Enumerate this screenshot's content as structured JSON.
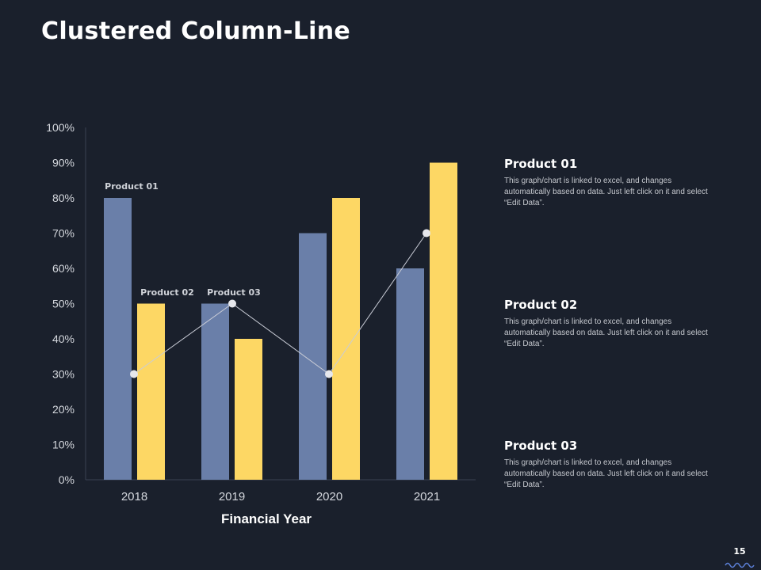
{
  "slide": {
    "title": "Clustered Column-Line",
    "page_number": "15"
  },
  "descriptions": [
    {
      "heading": "Product 01",
      "text": "This graph/chart is linked to excel, and changes automatically based on data. Just left click on it and select “Edit Data”."
    },
    {
      "heading": "Product 02",
      "text": "This graph/chart is linked to excel, and changes automatically based on data. Just left click on it and select “Edit Data”."
    },
    {
      "heading": "Product 03",
      "text": "This graph/chart is linked to excel, and changes automatically based on data. Just left click on it and select “Edit Data”."
    }
  ],
  "chart_data": {
    "type": "bar",
    "title": "",
    "xlabel": "Financial Year",
    "ylabel": "",
    "ylim": [
      0,
      100
    ],
    "yticks": [
      "0%",
      "10%",
      "20%",
      "30%",
      "40%",
      "50%",
      "60%",
      "70%",
      "80%",
      "90%",
      "100%"
    ],
    "categories": [
      "2018",
      "2019",
      "2020",
      "2021"
    ],
    "series": [
      {
        "name": "Product 01",
        "kind": "bar",
        "values": [
          80,
          50,
          70,
          60
        ],
        "color": "#6a7fa9"
      },
      {
        "name": "Product 02",
        "kind": "bar",
        "values": [
          50,
          40,
          80,
          90
        ],
        "color": "#fdd764"
      },
      {
        "name": "Product 03",
        "kind": "line",
        "values": [
          30,
          50,
          30,
          70
        ],
        "color": "#d0d3de"
      }
    ],
    "legend": "inline labels",
    "grid": false
  }
}
